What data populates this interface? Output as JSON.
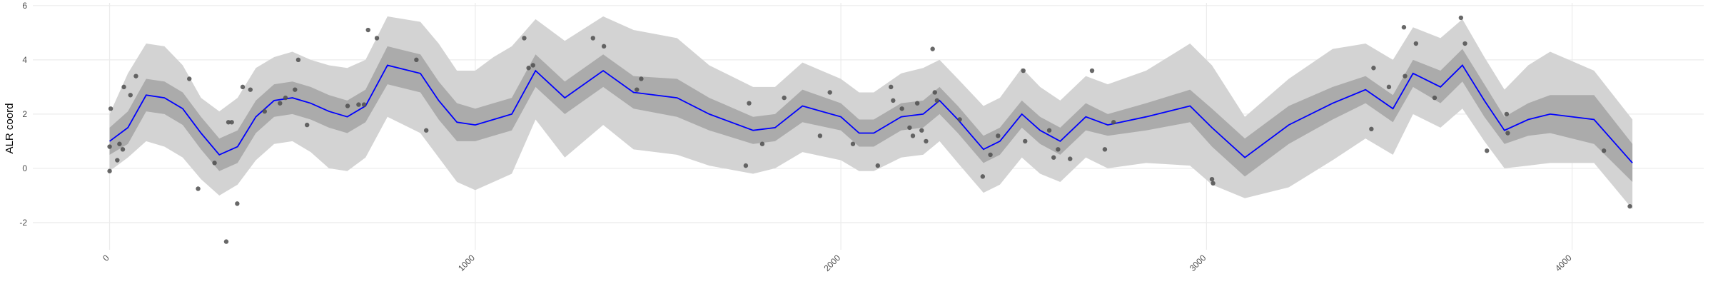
{
  "chart_data": {
    "type": "line",
    "y_label": "ALR coord",
    "xlim": [
      -210,
      4360
    ],
    "ylim": [
      -3,
      6.1
    ],
    "xticks": [
      0,
      1000,
      2000,
      3000,
      4000
    ],
    "yticks": [
      -2,
      0,
      2,
      4,
      6
    ],
    "grid": true,
    "x": [
      0,
      50,
      100,
      150,
      200,
      250,
      300,
      350,
      400,
      450,
      500,
      550,
      600,
      650,
      700,
      760,
      850,
      900,
      950,
      1000,
      1050,
      1100,
      1165,
      1245,
      1350,
      1433,
      1552,
      1640,
      1760,
      1820,
      1895,
      2000,
      2050,
      2090,
      2165,
      2225,
      2270,
      2320,
      2390,
      2435,
      2495,
      2545,
      2600,
      2670,
      2730,
      2835,
      2955,
      3015,
      3105,
      3225,
      3345,
      3435,
      3510,
      3565,
      3640,
      3700,
      3760,
      3815,
      3880,
      3940,
      4060,
      4165
    ],
    "bands": [
      {
        "color": "#d3d3d3",
        "lower": [
          -0.1,
          0.4,
          1.0,
          0.8,
          0.4,
          -0.4,
          -1.0,
          -0.6,
          0.3,
          0.9,
          1.0,
          0.6,
          0.0,
          -0.1,
          0.4,
          1.9,
          1.3,
          0.4,
          -0.5,
          -0.8,
          -0.5,
          -0.2,
          1.8,
          0.4,
          1.6,
          0.7,
          0.5,
          0.1,
          -0.2,
          0.0,
          0.6,
          0.3,
          -0.1,
          -0.1,
          0.4,
          0.5,
          1.0,
          0.2,
          -0.9,
          -0.6,
          0.4,
          -0.2,
          -0.5,
          0.4,
          0.0,
          0.2,
          0.1,
          -0.6,
          -1.1,
          -0.7,
          0.3,
          1.1,
          0.5,
          2.0,
          1.5,
          2.2,
          1.0,
          0.0,
          0.1,
          0.2,
          0.2,
          -1.5
        ],
        "upper": [
          2.0,
          3.5,
          4.6,
          4.5,
          3.8,
          2.6,
          2.1,
          2.6,
          3.7,
          4.1,
          4.3,
          4.0,
          3.8,
          3.7,
          4.0,
          5.6,
          5.4,
          4.6,
          3.6,
          3.6,
          4.1,
          4.5,
          5.5,
          4.7,
          5.6,
          5.1,
          4.8,
          3.8,
          3.0,
          3.0,
          3.9,
          3.3,
          2.8,
          2.8,
          3.5,
          3.7,
          4.0,
          3.3,
          2.3,
          2.6,
          3.7,
          3.0,
          2.5,
          3.4,
          3.1,
          3.6,
          4.6,
          3.8,
          1.9,
          3.3,
          4.4,
          4.6,
          4.0,
          5.2,
          4.8,
          5.5,
          4.1,
          2.9,
          3.8,
          4.3,
          3.6,
          1.8
        ]
      },
      {
        "color": "#ababab",
        "lower": [
          0.5,
          0.9,
          2.1,
          2.0,
          1.6,
          0.7,
          -0.1,
          0.2,
          1.3,
          1.9,
          2.0,
          1.8,
          1.5,
          1.3,
          1.7,
          3.1,
          2.8,
          1.8,
          1.0,
          1.0,
          1.2,
          1.4,
          3.0,
          2.0,
          3.0,
          2.2,
          1.9,
          1.4,
          0.9,
          1.0,
          1.7,
          1.4,
          0.8,
          0.8,
          1.4,
          1.5,
          2.0,
          1.3,
          0.2,
          0.5,
          1.5,
          0.9,
          0.5,
          1.4,
          1.2,
          1.4,
          1.7,
          0.8,
          -0.3,
          0.9,
          1.8,
          2.4,
          1.7,
          3.0,
          2.4,
          3.2,
          1.9,
          0.9,
          1.2,
          1.3,
          0.9,
          -0.5
        ],
        "upper": [
          1.5,
          2.1,
          3.3,
          3.2,
          2.8,
          1.9,
          1.1,
          1.4,
          2.5,
          3.1,
          3.2,
          3.0,
          2.7,
          2.5,
          2.9,
          4.5,
          4.2,
          3.2,
          2.4,
          2.2,
          2.4,
          2.6,
          4.2,
          3.2,
          4.2,
          3.4,
          3.3,
          2.6,
          1.9,
          2.0,
          2.9,
          2.4,
          1.8,
          1.8,
          2.4,
          2.5,
          3.0,
          2.3,
          1.2,
          1.5,
          2.5,
          1.9,
          1.5,
          2.4,
          2.0,
          2.4,
          2.9,
          2.2,
          1.1,
          2.3,
          3.0,
          3.4,
          2.7,
          4.0,
          3.6,
          4.4,
          3.1,
          1.9,
          2.4,
          2.7,
          2.7,
          0.9
        ]
      }
    ],
    "line": {
      "color": "#0000ff",
      "values": [
        1.0,
        1.5,
        2.7,
        2.6,
        2.2,
        1.3,
        0.5,
        0.8,
        1.9,
        2.5,
        2.6,
        2.4,
        2.1,
        1.9,
        2.3,
        3.8,
        3.5,
        2.5,
        1.7,
        1.6,
        1.8,
        2.0,
        3.6,
        2.6,
        3.6,
        2.8,
        2.6,
        2.0,
        1.4,
        1.5,
        2.3,
        1.9,
        1.3,
        1.3,
        1.9,
        2.0,
        2.5,
        1.8,
        0.7,
        1.0,
        2.0,
        1.4,
        1.0,
        1.9,
        1.6,
        1.9,
        2.3,
        1.5,
        0.4,
        1.6,
        2.4,
        2.9,
        2.2,
        3.5,
        3.0,
        3.8,
        2.5,
        1.4,
        1.8,
        2.0,
        1.8,
        0.2
      ]
    },
    "scatter": {
      "color": "#4d4d4d",
      "x": [
        0,
        0,
        3,
        21,
        27,
        36,
        39,
        57,
        72,
        218,
        242,
        287,
        319,
        325,
        334,
        349,
        364,
        385,
        424,
        466,
        481,
        507,
        516,
        540,
        651,
        681,
        696,
        707,
        731,
        839,
        866,
        1134,
        1146,
        1158,
        1322,
        1352,
        1442,
        1454,
        1740,
        1749,
        1785,
        1845,
        1943,
        1970,
        2033,
        2101,
        2137,
        2143,
        2167,
        2188,
        2197,
        2209,
        2221,
        2233,
        2251,
        2257,
        2263,
        2325,
        2388,
        2409,
        2430,
        2499,
        2504,
        2570,
        2582,
        2594,
        2627,
        2687,
        2722,
        2746,
        3015,
        3018,
        3451,
        3457,
        3499,
        3540,
        3543,
        3573,
        3624,
        3696,
        3707,
        3767,
        3821,
        3824,
        4087,
        4158
      ],
      "values": [
        -0.1,
        0.8,
        2.2,
        0.3,
        0.9,
        0.7,
        3.0,
        2.7,
        3.4,
        3.3,
        -0.75,
        0.2,
        -2.7,
        1.7,
        1.7,
        -1.3,
        3.0,
        2.9,
        2.1,
        2.4,
        2.6,
        2.9,
        4.0,
        1.6,
        2.3,
        2.35,
        2.35,
        5.1,
        4.8,
        4.0,
        1.4,
        4.8,
        3.7,
        3.8,
        4.8,
        4.5,
        2.9,
        3.3,
        0.1,
        2.4,
        0.9,
        2.6,
        1.2,
        2.8,
        0.9,
        0.1,
        3.0,
        2.5,
        2.2,
        1.5,
        1.2,
        2.4,
        1.4,
        1.0,
        4.4,
        2.8,
        2.5,
        1.8,
        -0.3,
        0.5,
        1.2,
        3.6,
        1.0,
        1.4,
        0.4,
        0.7,
        0.35,
        3.6,
        0.7,
        1.7,
        -0.4,
        -0.55,
        1.45,
        3.7,
        3.0,
        5.2,
        3.4,
        4.6,
        2.6,
        5.55,
        4.6,
        0.65,
        2.0,
        1.3,
        0.65,
        -1.4
      ]
    }
  }
}
